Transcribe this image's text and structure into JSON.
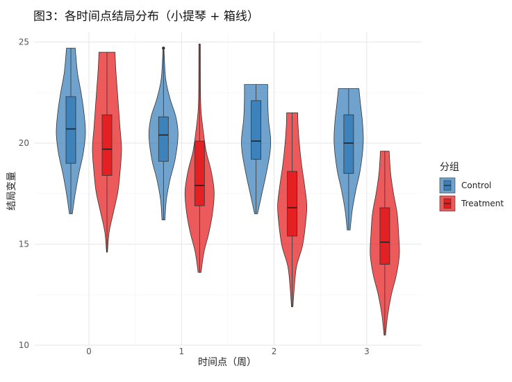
{
  "chart_data": {
    "type": "violin",
    "title": "图3：各时间点结局分布（小提琴 + 箱线）",
    "xlabel": "时间点（周）",
    "ylabel": "结局变量",
    "categories": [
      "0",
      "1",
      "2",
      "3"
    ],
    "ylim": [
      10,
      25.5
    ],
    "yticks": [
      10,
      15,
      20,
      25
    ],
    "grid": true,
    "legend": {
      "title": "分组",
      "position": "right"
    },
    "series": [
      {
        "name": "Control",
        "color": "#377EB8",
        "groups": [
          {
            "x": "0",
            "min": 16.5,
            "q1": 19.0,
            "median": 20.7,
            "q3": 22.3,
            "max": 24.7,
            "density": [
              [
                16.5,
                0.1
              ],
              [
                17.5,
                0.3
              ],
              [
                18.5,
                0.55
              ],
              [
                19.5,
                0.85
              ],
              [
                20.5,
                1.0
              ],
              [
                21.5,
                0.9
              ],
              [
                22.5,
                0.7
              ],
              [
                23.5,
                0.45
              ],
              [
                24.7,
                0.3
              ]
            ]
          },
          {
            "x": "1",
            "min": 16.2,
            "q1": 19.1,
            "median": 20.4,
            "q3": 21.3,
            "max": 24.7,
            "outliers": [
              24.7
            ],
            "density": [
              [
                16.2,
                0.1
              ],
              [
                17.2,
                0.2
              ],
              [
                18.2,
                0.45
              ],
              [
                19.2,
                0.8
              ],
              [
                20.4,
                1.0
              ],
              [
                21.3,
                0.85
              ],
              [
                22.2,
                0.45
              ],
              [
                23.2,
                0.15
              ],
              [
                24.7,
                0.03
              ]
            ]
          },
          {
            "x": "2",
            "min": 16.5,
            "q1": 19.2,
            "median": 20.1,
            "q3": 22.1,
            "max": 22.9,
            "density": [
              [
                16.5,
                0.1
              ],
              [
                17.5,
                0.4
              ],
              [
                18.5,
                0.7
              ],
              [
                19.5,
                0.95
              ],
              [
                20.2,
                1.0
              ],
              [
                21.2,
                0.85
              ],
              [
                22.2,
                0.8
              ],
              [
                22.9,
                0.8
              ]
            ]
          },
          {
            "x": "3",
            "min": 15.7,
            "q1": 18.5,
            "median": 20.0,
            "q3": 21.4,
            "max": 22.7,
            "density": [
              [
                15.7,
                0.1
              ],
              [
                16.7,
                0.25
              ],
              [
                17.7,
                0.5
              ],
              [
                18.7,
                0.8
              ],
              [
                20.0,
                1.0
              ],
              [
                21.0,
                0.95
              ],
              [
                22.0,
                0.8
              ],
              [
                22.7,
                0.7
              ]
            ]
          }
        ]
      },
      {
        "name": "Treatment",
        "color": "#E41A1C",
        "groups": [
          {
            "x": "0",
            "min": 14.6,
            "q1": 18.4,
            "median": 19.7,
            "q3": 21.4,
            "max": 24.5,
            "density": [
              [
                14.6,
                0.03
              ],
              [
                15.6,
                0.15
              ],
              [
                16.6,
                0.45
              ],
              [
                17.6,
                0.75
              ],
              [
                18.6,
                0.9
              ],
              [
                19.7,
                1.0
              ],
              [
                20.7,
                0.9
              ],
              [
                21.7,
                0.8
              ],
              [
                22.7,
                0.7
              ],
              [
                23.7,
                0.6
              ],
              [
                24.5,
                0.55
              ]
            ]
          },
          {
            "x": "1",
            "min": 13.6,
            "q1": 16.9,
            "median": 17.9,
            "q3": 20.1,
            "max": 24.9,
            "density": [
              [
                13.6,
                0.1
              ],
              [
                14.6,
                0.3
              ],
              [
                15.6,
                0.65
              ],
              [
                16.6,
                0.9
              ],
              [
                17.6,
                1.0
              ],
              [
                18.6,
                0.8
              ],
              [
                19.6,
                0.45
              ],
              [
                20.6,
                0.25
              ],
              [
                21.6,
                0.1
              ],
              [
                22.6,
                0.06
              ],
              [
                24.9,
                0.05
              ]
            ]
          },
          {
            "x": "2",
            "min": 11.9,
            "q1": 15.4,
            "median": 16.8,
            "q3": 18.6,
            "max": 21.5,
            "density": [
              [
                11.9,
                0.05
              ],
              [
                12.9,
                0.15
              ],
              [
                13.9,
                0.3
              ],
              [
                14.9,
                0.7
              ],
              [
                15.9,
                0.9
              ],
              [
                16.9,
                1.0
              ],
              [
                17.9,
                0.85
              ],
              [
                18.9,
                0.65
              ],
              [
                19.9,
                0.5
              ],
              [
                20.9,
                0.4
              ],
              [
                21.5,
                0.38
              ]
            ]
          },
          {
            "x": "3",
            "min": 10.5,
            "q1": 14.0,
            "median": 15.1,
            "q3": 16.8,
            "max": 19.6,
            "density": [
              [
                10.5,
                0.05
              ],
              [
                11.5,
                0.2
              ],
              [
                12.5,
                0.45
              ],
              [
                13.5,
                0.8
              ],
              [
                14.5,
                1.0
              ],
              [
                15.5,
                0.95
              ],
              [
                16.5,
                0.85
              ],
              [
                17.5,
                0.6
              ],
              [
                18.5,
                0.4
              ],
              [
                19.6,
                0.3
              ]
            ]
          }
        ]
      }
    ]
  }
}
